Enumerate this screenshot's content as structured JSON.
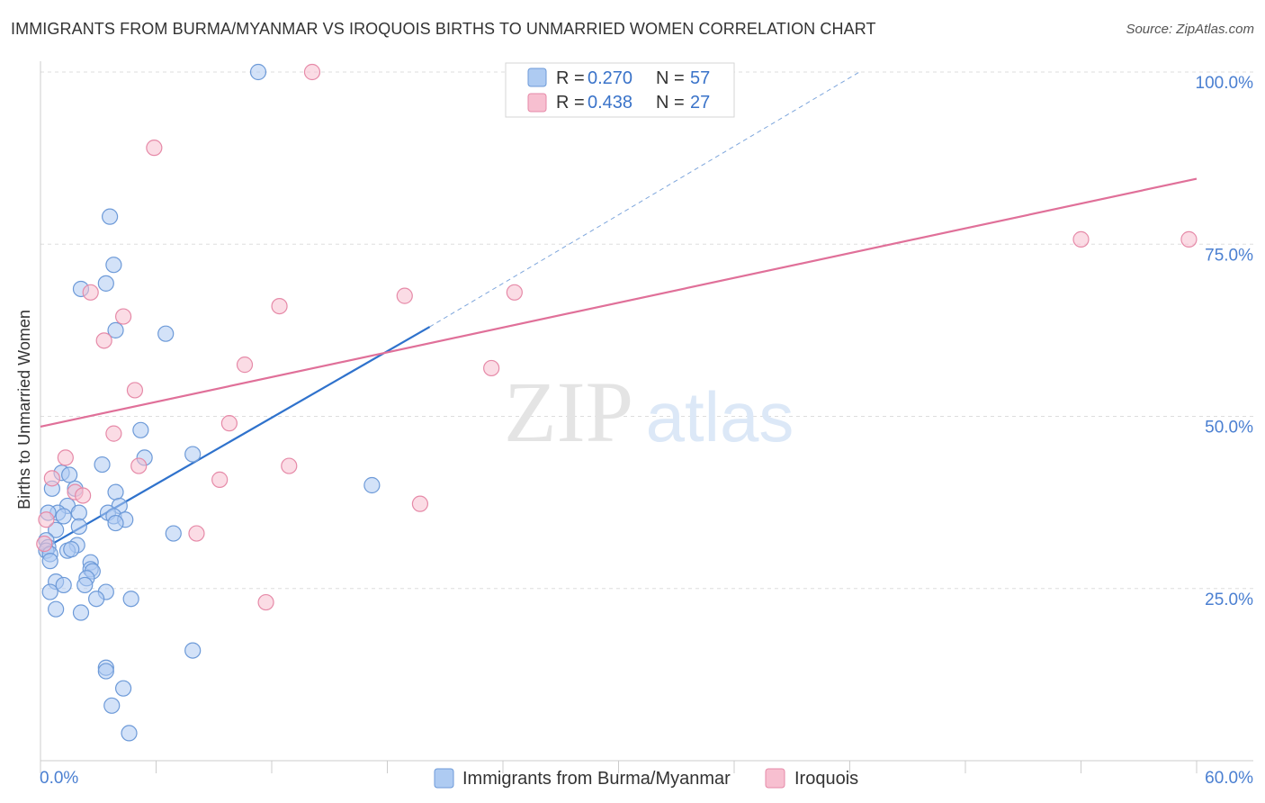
{
  "header": {
    "title": "IMMIGRANTS FROM BURMA/MYANMAR VS IROQUOIS BIRTHS TO UNMARRIED WOMEN CORRELATION CHART",
    "source": "Source: ZipAtlas.com"
  },
  "watermark": {
    "zip": "ZIP",
    "atlas": "atlas"
  },
  "colors": {
    "blue_fill": "#aecbf2",
    "blue_stroke": "#6d9ad8",
    "blue_line": "#2f72cc",
    "pink_fill": "#f7bfd0",
    "pink_stroke": "#e68aa8",
    "pink_line": "#e07099",
    "grid": "#dddddd",
    "tick_text": "#4a7fd1"
  },
  "chart_data": {
    "type": "scatter",
    "ylabel": "Births to Unmarried Women",
    "xlim": [
      0,
      60
    ],
    "ylim": [
      0,
      100
    ],
    "x_ticks": [
      {
        "value": 0,
        "label": "0.0%"
      },
      {
        "value": 60,
        "label": "60.0%"
      }
    ],
    "y_ticks": [
      {
        "value": 25,
        "label": "25.0%"
      },
      {
        "value": 50,
        "label": "50.0%"
      },
      {
        "value": 75,
        "label": "75.0%"
      },
      {
        "value": 100,
        "label": "100.0%"
      }
    ],
    "legend": {
      "position": "top-center",
      "entries": [
        {
          "series": "blue",
          "r_label": "R =",
          "r_value": "0.270",
          "n_label": "N =",
          "n_value": "57"
        },
        {
          "series": "pink",
          "r_label": "R =",
          "r_value": "0.438",
          "n_label": "N =",
          "n_value": "27"
        }
      ]
    },
    "bottom_legend": [
      "Immigrants from Burma/Myanmar",
      "Iroquois"
    ],
    "series": [
      {
        "name": "Immigrants from Burma/Myanmar",
        "key": "blue",
        "trend": {
          "x0": 0,
          "y0": 30.5,
          "x1": 20.2,
          "y1": 63,
          "dash_x1": 42.5,
          "dash_y1": 100
        },
        "points": [
          [
            11.3,
            100
          ],
          [
            3.6,
            79
          ],
          [
            3.8,
            72
          ],
          [
            3.4,
            69.3
          ],
          [
            2.1,
            68.5
          ],
          [
            3.9,
            62.5
          ],
          [
            6.5,
            62
          ],
          [
            5.2,
            48
          ],
          [
            5.4,
            44
          ],
          [
            7.9,
            44.5
          ],
          [
            3.2,
            43
          ],
          [
            1.1,
            41.8
          ],
          [
            1.5,
            41.5
          ],
          [
            3.9,
            39
          ],
          [
            0.6,
            39.5
          ],
          [
            1.8,
            39.5
          ],
          [
            4.1,
            37
          ],
          [
            1.4,
            37
          ],
          [
            0.9,
            36
          ],
          [
            3.5,
            36
          ],
          [
            2.0,
            36
          ],
          [
            0.4,
            36
          ],
          [
            1.2,
            35.5
          ],
          [
            3.8,
            35.5
          ],
          [
            4.4,
            35
          ],
          [
            3.9,
            34.5
          ],
          [
            2.0,
            34
          ],
          [
            0.8,
            33.5
          ],
          [
            17.2,
            40
          ],
          [
            6.9,
            33
          ],
          [
            0.3,
            32
          ],
          [
            0.4,
            31
          ],
          [
            0.3,
            30.5
          ],
          [
            0.5,
            30
          ],
          [
            0.5,
            29
          ],
          [
            1.9,
            31.3
          ],
          [
            1.4,
            30.5
          ],
          [
            1.6,
            30.7
          ],
          [
            2.6,
            28.8
          ],
          [
            2.6,
            27.8
          ],
          [
            2.7,
            27.5
          ],
          [
            2.4,
            26.5
          ],
          [
            2.3,
            25.5
          ],
          [
            0.8,
            26
          ],
          [
            1.2,
            25.5
          ],
          [
            0.5,
            24.5
          ],
          [
            3.4,
            24.5
          ],
          [
            2.9,
            23.5
          ],
          [
            4.7,
            23.5
          ],
          [
            0.8,
            22
          ],
          [
            2.1,
            21.5
          ],
          [
            7.9,
            16
          ],
          [
            3.4,
            13.5
          ],
          [
            3.4,
            13
          ],
          [
            4.3,
            10.5
          ],
          [
            3.7,
            8
          ],
          [
            4.6,
            4
          ]
        ]
      },
      {
        "name": "Iroquois",
        "key": "pink",
        "trend": {
          "x0": 0,
          "y0": 48.5,
          "x1": 60,
          "y1": 84.5
        },
        "points": [
          [
            14.1,
            100
          ],
          [
            5.9,
            89
          ],
          [
            54,
            75.7
          ],
          [
            59.6,
            75.7
          ],
          [
            2.6,
            68
          ],
          [
            12.4,
            66
          ],
          [
            18.9,
            67.5
          ],
          [
            24.6,
            68
          ],
          [
            4.3,
            64.5
          ],
          [
            3.3,
            61
          ],
          [
            10.6,
            57.5
          ],
          [
            23.4,
            57
          ],
          [
            4.9,
            53.8
          ],
          [
            9.8,
            49
          ],
          [
            3.8,
            47.5
          ],
          [
            1.3,
            44
          ],
          [
            5.1,
            42.8
          ],
          [
            12.9,
            42.8
          ],
          [
            0.6,
            41
          ],
          [
            9.3,
            40.8
          ],
          [
            1.8,
            39
          ],
          [
            2.2,
            38.5
          ],
          [
            19.7,
            37.3
          ],
          [
            0.3,
            35
          ],
          [
            8.1,
            33
          ],
          [
            0.2,
            31.5
          ],
          [
            11.7,
            23
          ]
        ]
      }
    ]
  }
}
